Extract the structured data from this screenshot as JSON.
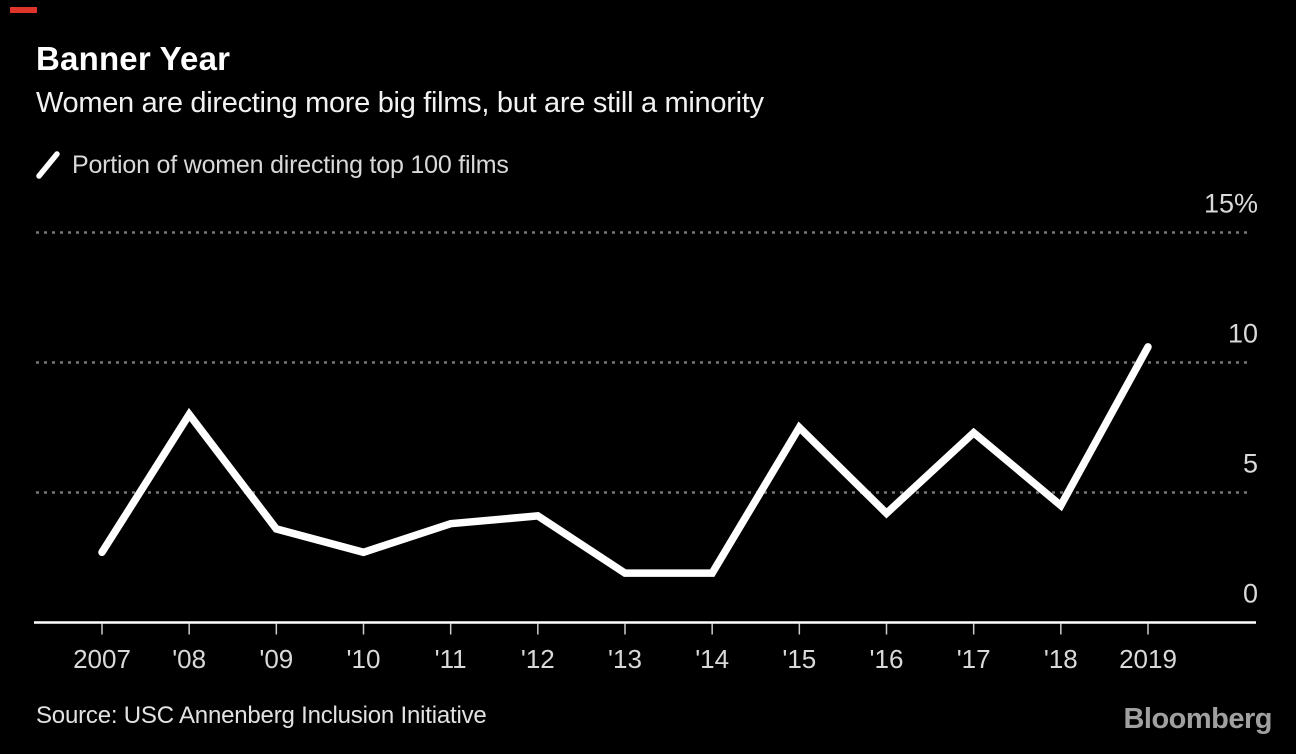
{
  "header": {
    "title": "Banner Year",
    "subtitle": "Women are directing more big films, but are still a minority"
  },
  "legend": {
    "label": "Portion of women directing top 100 films",
    "marker": "white-slash-line"
  },
  "chart_data": {
    "type": "line",
    "title": "Banner Year",
    "subtitle": "Women are directing more big films, but are still a minority",
    "categories": [
      "2007",
      "'08",
      "'09",
      "'10",
      "'11",
      "'12",
      "'13",
      "'14",
      "'15",
      "'16",
      "'17",
      "'18",
      "2019"
    ],
    "series": [
      {
        "name": "Portion of women directing top 100 films",
        "values": [
          2.7,
          8.0,
          3.6,
          2.7,
          3.8,
          4.1,
          1.9,
          1.9,
          7.5,
          4.2,
          7.3,
          4.5,
          10.6
        ]
      }
    ],
    "xlabel": "",
    "ylabel": "",
    "y_unit": "%",
    "ylim": [
      0,
      15
    ],
    "y_ticks": [
      {
        "value": 15,
        "label": "15%"
      },
      {
        "value": 10,
        "label": "10"
      },
      {
        "value": 5,
        "label": "5"
      },
      {
        "value": 0,
        "label": "0"
      }
    ],
    "grid": "horizontal-dotted",
    "legend_position": "top-left",
    "line_color": "#ffffff",
    "background": "#000000"
  },
  "footer": {
    "source": "Source: USC Annenberg Inclusion Initiative",
    "brand": "Bloomberg"
  },
  "colors": {
    "background": "#000000",
    "accent_red": "#e0342b",
    "line": "#ffffff",
    "grid": "#787878",
    "axis": "#ffffff",
    "tick": "#cccccc",
    "tick_label": "#d9d9d9",
    "title_text": "#ffffff",
    "subtitle_text": "#f2f2f2",
    "source_text": "#e2e2e2",
    "brand_text": "#a0a0a0"
  }
}
